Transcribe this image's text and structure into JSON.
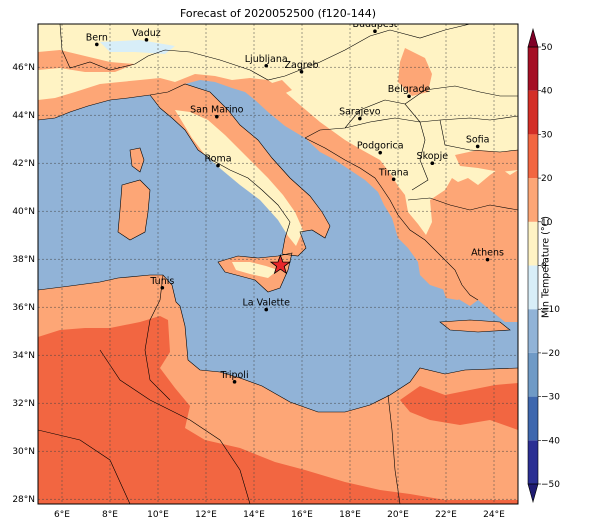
{
  "title": "Forecast of 2020052500 (f120-144)",
  "map": {
    "lon_range": [
      5,
      25
    ],
    "lat_range": [
      27.8,
      47.8
    ],
    "lon_ticks": [
      "6°E",
      "8°E",
      "10°E",
      "12°E",
      "14°E",
      "16°E",
      "18°E",
      "20°E",
      "22°E",
      "24°E"
    ],
    "lat_ticks": [
      "28°N",
      "30°N",
      "32°N",
      "34°N",
      "36°N",
      "38°N",
      "40°N",
      "42°N",
      "44°N",
      "46°N"
    ],
    "gridlines": true,
    "colors": {
      "sea": "#91b3d7",
      "lake": "#d8eef8",
      "land_0_10": "#fff3c4",
      "land_10_20": "#fda676",
      "land_20_30": "#f26641"
    },
    "cities": [
      {
        "name": "Bern",
        "lon": 7.45,
        "lat": 46.95
      },
      {
        "name": "Vaduz",
        "lon": 9.52,
        "lat": 47.14
      },
      {
        "name": "Budapest",
        "lon": 19.04,
        "lat": 47.5
      },
      {
        "name": "Ljubljana",
        "lon": 14.51,
        "lat": 46.06
      },
      {
        "name": "Zagreb",
        "lon": 15.98,
        "lat": 45.81
      },
      {
        "name": "Belgrade",
        "lon": 20.46,
        "lat": 44.79
      },
      {
        "name": "San Marino",
        "lon": 12.45,
        "lat": 43.94
      },
      {
        "name": "Sarajevo",
        "lon": 18.41,
        "lat": 43.86
      },
      {
        "name": "Sofia",
        "lon": 23.32,
        "lat": 42.7
      },
      {
        "name": "Podgorica",
        "lon": 19.26,
        "lat": 42.44
      },
      {
        "name": "Skopje",
        "lon": 21.43,
        "lat": 42.0
      },
      {
        "name": "Roma",
        "lon": 12.5,
        "lat": 41.9
      },
      {
        "name": "Tirana",
        "lon": 19.82,
        "lat": 41.33
      },
      {
        "name": "Athens",
        "lon": 23.73,
        "lat": 37.98
      },
      {
        "name": "Tunis",
        "lon": 10.18,
        "lat": 36.81
      },
      {
        "name": "La Valette",
        "lon": 14.51,
        "lat": 35.9
      },
      {
        "name": "Tripoli",
        "lon": 13.19,
        "lat": 32.89
      }
    ],
    "marker": {
      "symbol": "star",
      "lon": 15.1,
      "lat": 37.75,
      "color": "#e8262a"
    }
  },
  "colorbar": {
    "label": "Min Temperature (°C)",
    "min": -50,
    "max": 50,
    "ticks": [
      "50",
      "40",
      "30",
      "20",
      "10",
      "0",
      "−10",
      "−20",
      "−30",
      "−40",
      "−50"
    ],
    "levels": [
      {
        "from": -50,
        "to": -40,
        "color": "#2b2f93"
      },
      {
        "from": -40,
        "to": -30,
        "color": "#3e67ae"
      },
      {
        "from": -30,
        "to": -20,
        "color": "#6f9ac6"
      },
      {
        "from": -20,
        "to": -10,
        "color": "#91b3d7"
      },
      {
        "from": -10,
        "to": 0,
        "color": "#d8eef8"
      },
      {
        "from": 0,
        "to": 10,
        "color": "#fff3c4"
      },
      {
        "from": 10,
        "to": 20,
        "color": "#fda676"
      },
      {
        "from": 20,
        "to": 30,
        "color": "#f26641"
      },
      {
        "from": 30,
        "to": 40,
        "color": "#d32e27"
      },
      {
        "from": 40,
        "to": 50,
        "color": "#a50f25"
      }
    ],
    "extend_low_color": "#1f1b72",
    "extend_high_color": "#7f0026"
  }
}
